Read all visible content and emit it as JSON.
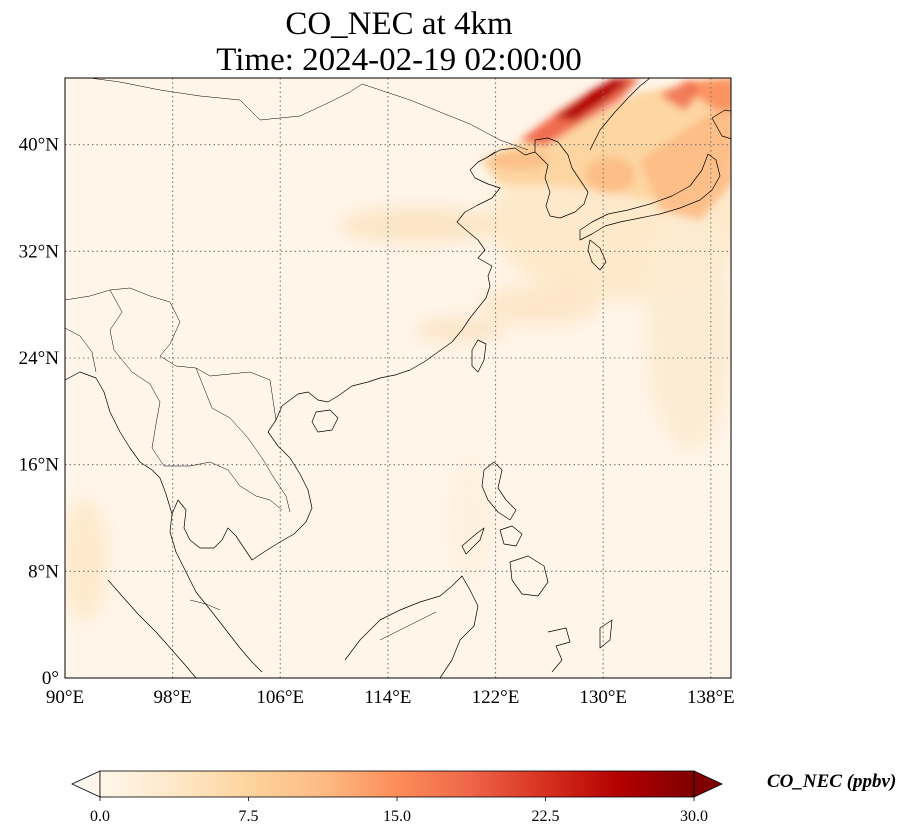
{
  "title": {
    "line1": "CO_NEC at 4km",
    "line2": "Time: 2024-02-19 02:00:00"
  },
  "map": {
    "lon_range": [
      90,
      139.5
    ],
    "lat_range": [
      0,
      45
    ],
    "x_ticks": [
      {
        "lon": 90,
        "label": "90°E"
      },
      {
        "lon": 98,
        "label": "98°E"
      },
      {
        "lon": 106,
        "label": "106°E"
      },
      {
        "lon": 114,
        "label": "114°E"
      },
      {
        "lon": 122,
        "label": "122°E"
      },
      {
        "lon": 130,
        "label": "130°E"
      },
      {
        "lon": 138,
        "label": "138°E"
      }
    ],
    "y_ticks": [
      {
        "lat": 0,
        "label": "0°"
      },
      {
        "lat": 8,
        "label": "8°N"
      },
      {
        "lat": 16,
        "label": "16°N"
      },
      {
        "lat": 24,
        "label": "24°N"
      },
      {
        "lat": 32,
        "label": "32°N"
      },
      {
        "lat": 40,
        "label": "40°N"
      }
    ],
    "gridlines": "dotted",
    "field_max_region": "north-east corner (Korea / Manchuria / Sea of Japan)"
  },
  "colorbar": {
    "label": "CO_NEC (ppbv)",
    "min": 0.0,
    "max": 30.0,
    "colormap": "OrRd",
    "colors": [
      "#fff7ec",
      "#fee8c8",
      "#fdd49e",
      "#fdbb84",
      "#fc8d59",
      "#ef6548",
      "#d7301f",
      "#b30000",
      "#7f0000"
    ],
    "extend": "both",
    "ticks": [
      {
        "value": 0.0,
        "label": "0.0"
      },
      {
        "value": 7.5,
        "label": "7.5"
      },
      {
        "value": 15.0,
        "label": "15.0"
      },
      {
        "value": 22.5,
        "label": "22.5"
      },
      {
        "value": 30.0,
        "label": "30.0"
      }
    ]
  }
}
